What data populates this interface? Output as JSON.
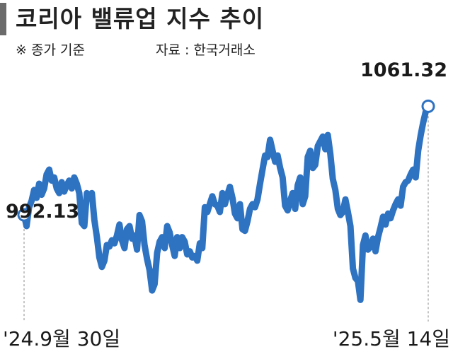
{
  "header": {
    "title": "코리아 밸류업 지수 추이",
    "note": "※ 종가 기준",
    "source": "자료 : 한국거래소"
  },
  "colors": {
    "line": "#2e72c2",
    "marker_fill": "#ffffff",
    "title_bar": "#6b6b6b",
    "guide": "#888888"
  },
  "chart_data": {
    "type": "line",
    "title": "코리아 밸류업 지수 추이",
    "start_label": "'24.9월 30일",
    "end_label": "'25.5월 14일",
    "first_value_label": "992.13",
    "last_value_label": "1061.32",
    "ylim": [
      940,
      1075
    ],
    "grid": false,
    "legend": "none",
    "series": [
      {
        "values": [
          992.13,
          985,
          997,
          1001,
          1008,
          1003,
          1012,
          1005,
          1009,
          1018,
          1021,
          1014,
          1016,
          1009,
          1006,
          1013,
          1007,
          1011,
          1014,
          1009,
          1016,
          1012,
          1006,
          987,
          985,
          1006,
          1004,
          1006,
          989,
          978,
          965,
          959,
          963,
          973,
          972,
          976,
          974,
          979,
          986,
          976,
          971,
          983,
          985,
          977,
          979,
          970,
          992,
          988,
          973,
          964,
          957,
          944,
          948,
          968,
          975,
          978,
          971,
          985,
          981,
          973,
          966,
          978,
          971,
          978,
          975,
          967,
          969,
          965,
          966,
          963,
          974,
          971,
          997,
          994,
          999,
          1004,
          999,
          998,
          994,
          1006,
          999,
          1005,
          1010,
          1003,
          993,
          990,
          999,
          983,
          982,
          988,
          996,
          999,
          997,
          1002,
          1012,
          1021,
          1030,
          1029,
          1040,
          1033,
          1026,
          1030,
          1022,
          1016,
          998,
          995,
          1001,
          1006,
          996,
          1011,
          1016,
          999,
          1004,
          1029,
          1033,
          1022,
          1024,
          1036,
          1039,
          1042,
          1034,
          1043,
          1031,
          1015,
          1008,
          996,
          992,
          994,
          1002,
          994,
          985,
          958,
          952,
          950,
          938,
          973,
          979,
          970,
          972,
          977,
          969,
          978,
          984,
          991,
          986,
          993,
          990,
          995,
          999,
          1002,
          998,
          1010,
          1013,
          1014,
          1018,
          1021,
          1016,
          1033,
          1043,
          1051,
          1058,
          1061.32
        ]
      }
    ]
  }
}
